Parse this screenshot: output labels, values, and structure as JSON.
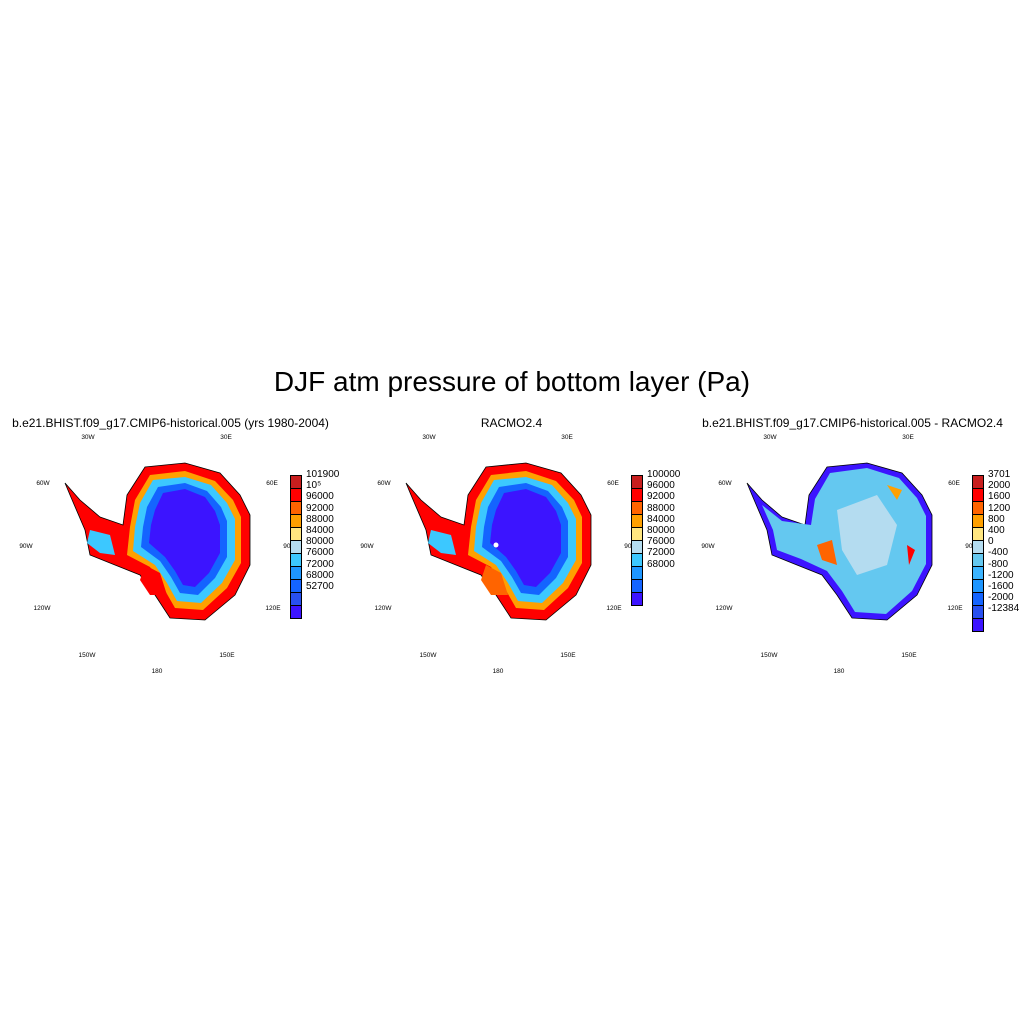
{
  "title": "DJF atm pressure of bottom layer (Pa)",
  "panels": [
    {
      "title": "b.e21.BHIST.f09_g17.CMIP6-historical.005 (yrs 1980-2004)",
      "right_label": "",
      "lon_labels": [
        "30W",
        "30E",
        "60W",
        "60E",
        "90W",
        "90E",
        "120W",
        "120E",
        "150W",
        "150E",
        "180"
      ],
      "colorbar": {
        "labels": [
          "101900",
          "10⁵",
          "96000",
          "92000",
          "88000",
          "84000",
          "80000",
          "76000",
          "72000",
          "68000",
          "52700"
        ],
        "colors": [
          "#c81e1e",
          "#ff0000",
          "#ff6400",
          "#ffa000",
          "#ffe680",
          "#b4dcf0",
          "#3cc8ff",
          "#1e96ff",
          "#1464ff",
          "#2850f0",
          "#3c14ff"
        ]
      }
    },
    {
      "title": "RACMO2.4",
      "right_label": "",
      "lon_labels": [
        "30W",
        "30E",
        "60W",
        "60E",
        "90W",
        "90E",
        "120W",
        "120E",
        "150W",
        "150E",
        "180"
      ],
      "colorbar": {
        "labels": [
          "100000",
          "96000",
          "92000",
          "88000",
          "84000",
          "80000",
          "76000",
          "72000",
          "68000"
        ],
        "colors": [
          "#c81e1e",
          "#ff0000",
          "#ff6400",
          "#ffa000",
          "#ffe680",
          "#b4dcf0",
          "#3cc8ff",
          "#1e96ff",
          "#1464ff",
          "#3c14ff"
        ]
      }
    },
    {
      "title": "b.e21.BHIST.f09_g17.CMIP6-historical.005 - RACMO2.4",
      "right_label": "",
      "lon_labels": [
        "30W",
        "30E",
        "60W",
        "60E",
        "90W",
        "90E",
        "120W",
        "120E",
        "150W",
        "150E",
        "180"
      ],
      "colorbar": {
        "labels": [
          "3701",
          "2000",
          "1600",
          "1200",
          "800",
          "400",
          "0",
          "-400",
          "-800",
          "-1200",
          "-1600",
          "-2000",
          "-12384"
        ],
        "colors": [
          "#c81e1e",
          "#ff0000",
          "#ff6400",
          "#ffa000",
          "#ffe680",
          "#b4dcf0",
          "#64c8f0",
          "#3cb4ff",
          "#1e96ff",
          "#1464ff",
          "#2850f0",
          "#3c14ff"
        ]
      }
    }
  ]
}
